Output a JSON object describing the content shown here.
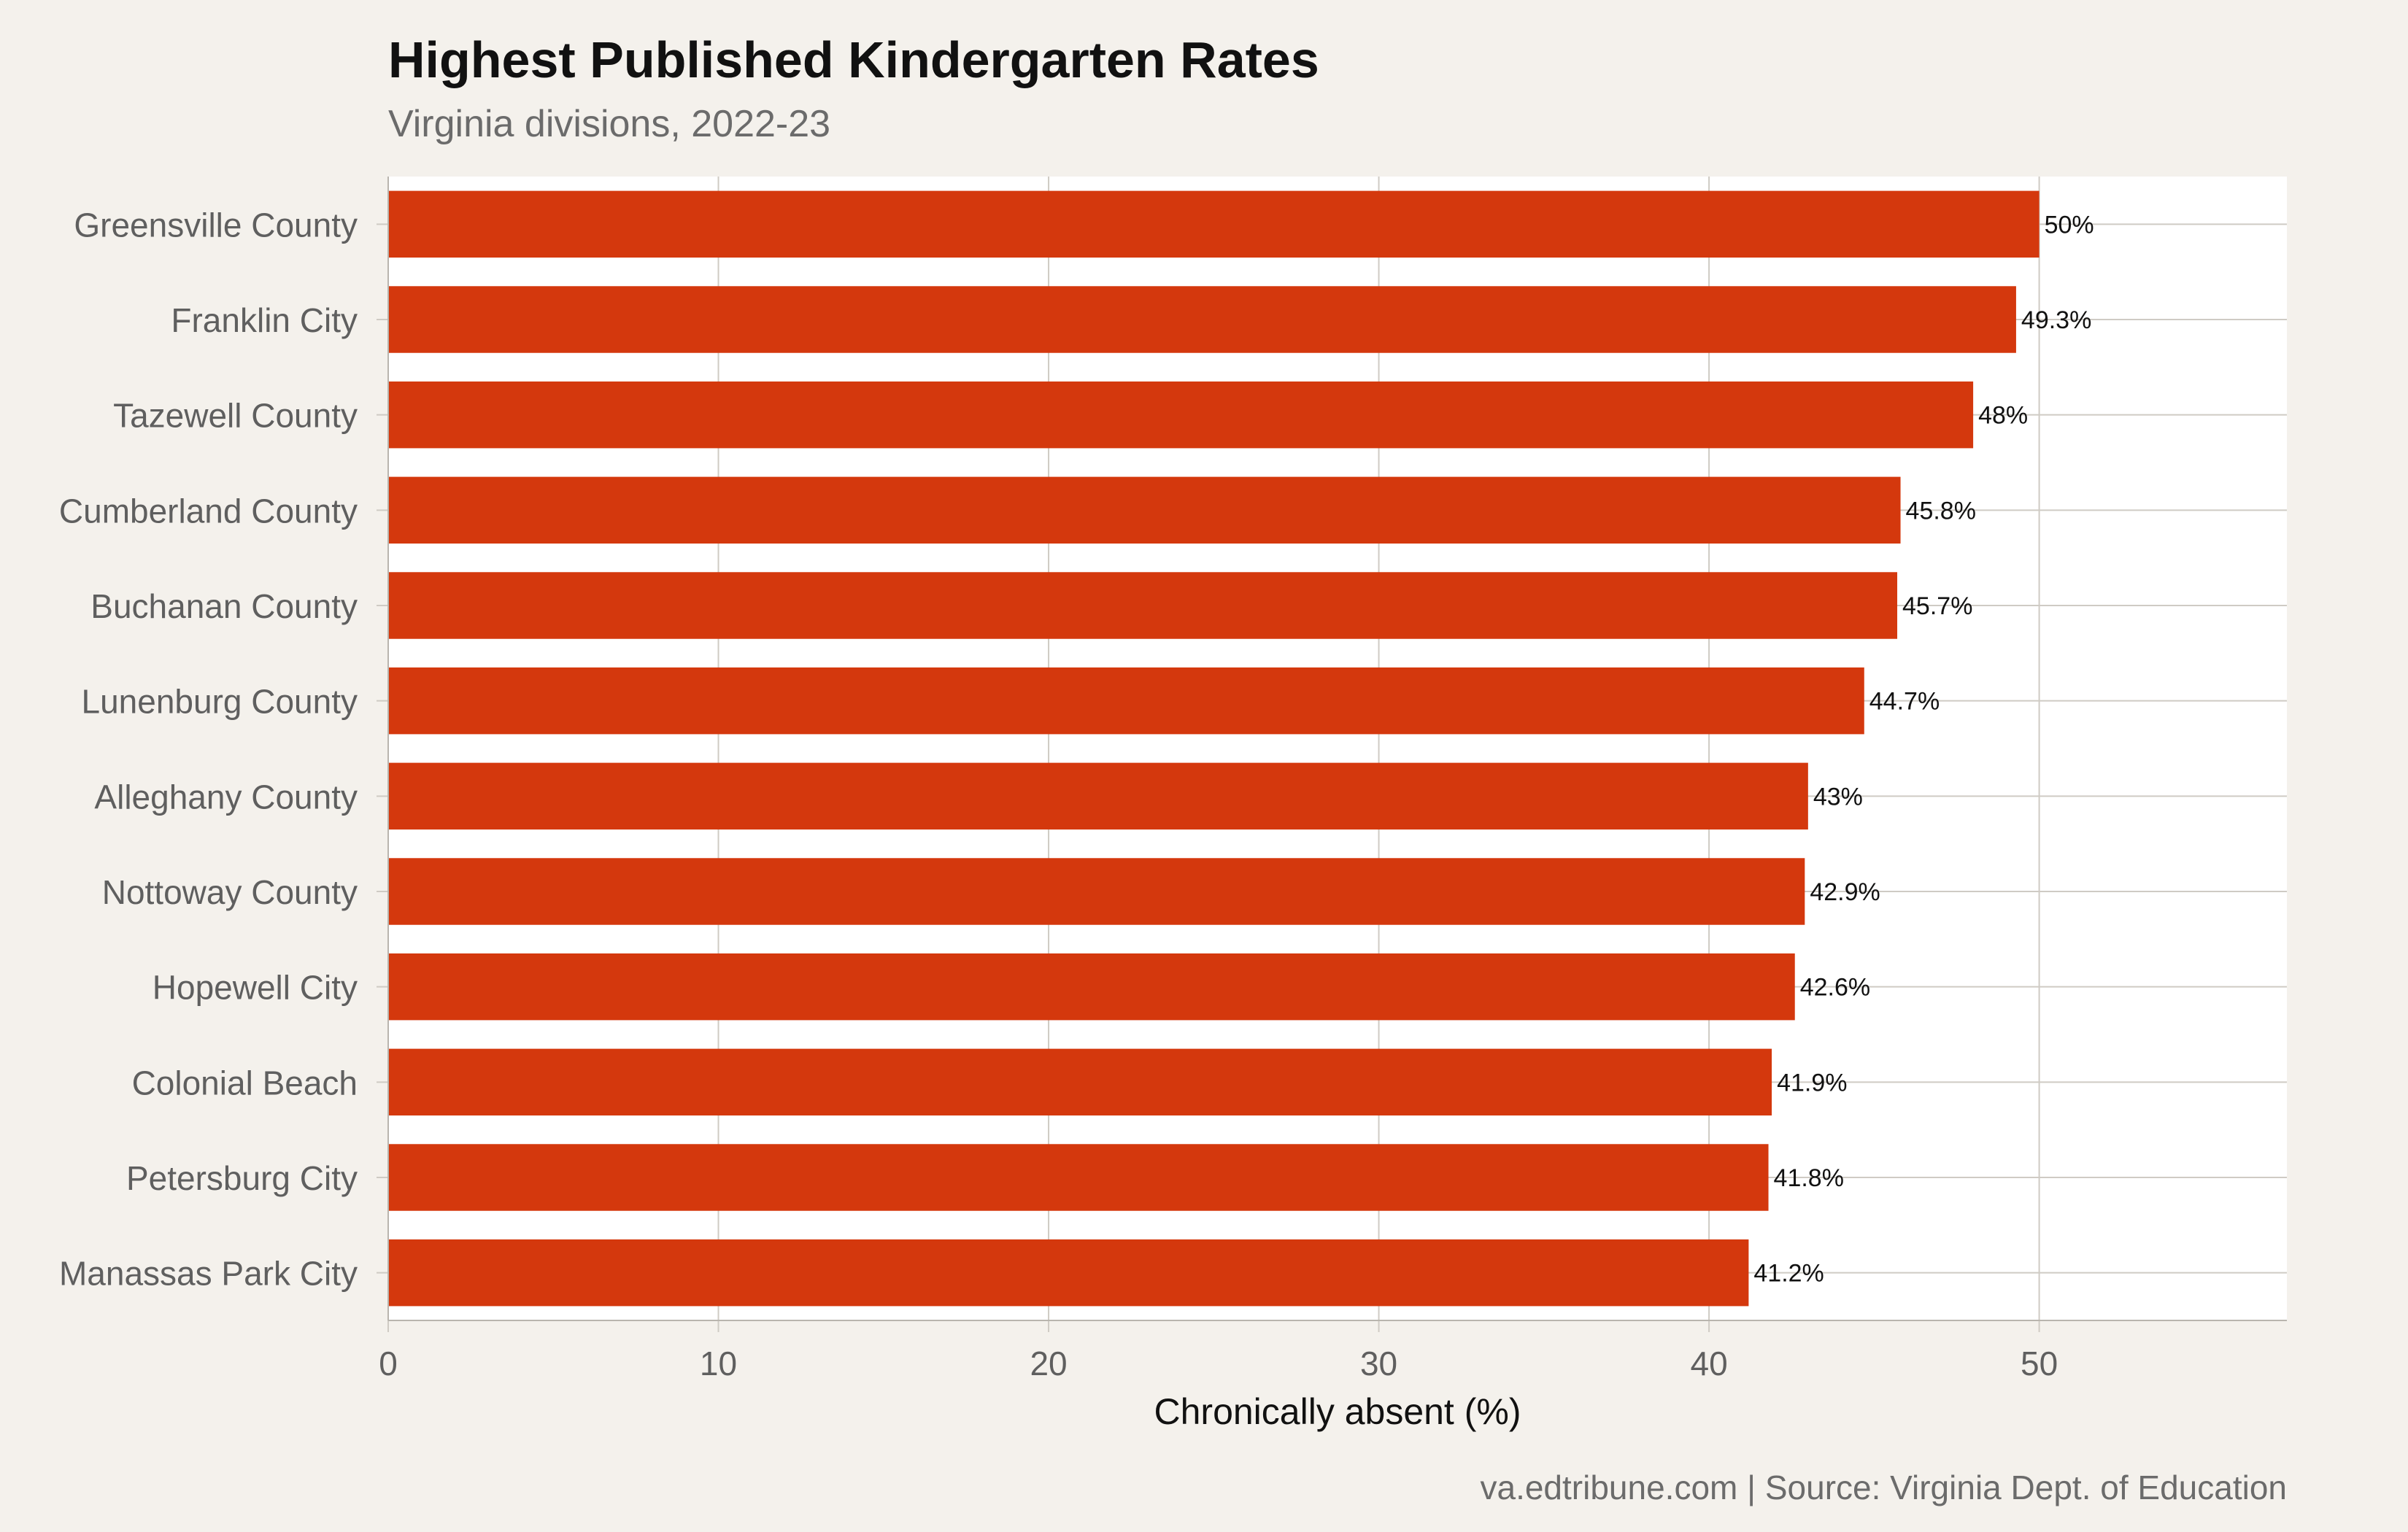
{
  "colors": {
    "background": "#f4f1ec",
    "panel": "#ffffff",
    "bar": "#d4380d",
    "grid": "#cfcbc4",
    "axis": "#b9b5ae"
  },
  "chart_data": {
    "type": "bar",
    "orientation": "horizontal",
    "title": "Highest Published Kindergarten Rates",
    "subtitle": "Virginia divisions, 2022-23",
    "xlabel": "Chronically absent (%)",
    "ylabel": "",
    "caption": "va.edtribune.com | Source: Virginia Dept. of Education",
    "categories": [
      "Greensville County",
      "Franklin City",
      "Tazewell County",
      "Cumberland County",
      "Buchanan County",
      "Lunenburg County",
      "Alleghany County",
      "Nottoway County",
      "Hopewell City",
      "Colonial Beach",
      "Petersburg City",
      "Manassas Park City"
    ],
    "values": [
      50,
      49.3,
      48,
      45.8,
      45.7,
      44.7,
      43,
      42.9,
      42.6,
      41.9,
      41.8,
      41.2
    ],
    "data_labels": [
      "50%",
      "49.3%",
      "48%",
      "45.8%",
      "45.7%",
      "44.7%",
      "43%",
      "42.9%",
      "42.6%",
      "41.9%",
      "41.8%",
      "41.2%"
    ],
    "xlim": [
      0,
      57.5
    ],
    "xticks": [
      0,
      10,
      20,
      30,
      40,
      50
    ],
    "xtick_labels": [
      "0",
      "10",
      "20",
      "30",
      "40",
      "50"
    ],
    "grid": true,
    "legend": "none"
  }
}
